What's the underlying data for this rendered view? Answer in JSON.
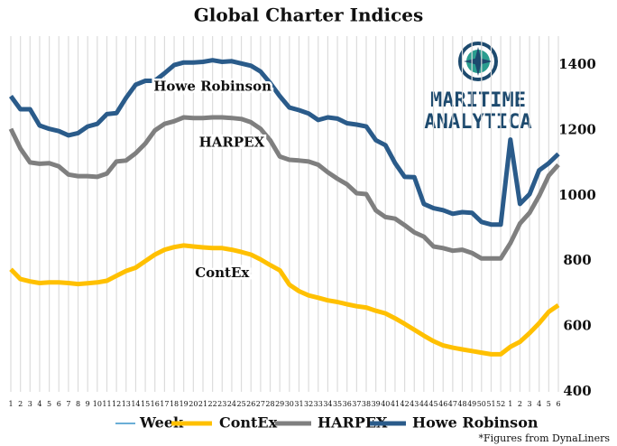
{
  "chart_data": {
    "type": "line",
    "title": "Global Charter Indices",
    "x_label": "Week",
    "x_label_color": "#6aaed6",
    "categories": [
      "1",
      "2",
      "3",
      "4",
      "5",
      "6",
      "7",
      "8",
      "9",
      "10",
      "11",
      "12",
      "13",
      "14",
      "15",
      "16",
      "17",
      "18",
      "19",
      "20",
      "21",
      "22",
      "23",
      "24",
      "25",
      "26",
      "27",
      "28",
      "29",
      "30",
      "31",
      "32",
      "33",
      "34",
      "35",
      "36",
      "37",
      "38",
      "39",
      "40",
      "41",
      "42",
      "43",
      "44",
      "45",
      "46",
      "47",
      "48",
      "49",
      "50",
      "51",
      "52",
      "1",
      "2",
      "3",
      "4",
      "5",
      "6"
    ],
    "series": [
      {
        "name": "ContEx",
        "color": "#ffc000",
        "values": [
          775,
          745,
          738,
          733,
          735,
          735,
          733,
          730,
          732,
          735,
          740,
          755,
          770,
          780,
          800,
          820,
          835,
          843,
          848,
          845,
          842,
          840,
          840,
          835,
          828,
          820,
          805,
          788,
          772,
          728,
          708,
          695,
          688,
          680,
          675,
          668,
          662,
          658,
          648,
          640,
          625,
          608,
          590,
          572,
          555,
          542,
          535,
          530,
          525,
          520,
          515,
          515,
          538,
          553,
          580,
          610,
          645,
          665
        ]
      },
      {
        "name": "HARPEX",
        "color": "#7f7f7f",
        "values": [
          1205,
          1145,
          1102,
          1098,
          1100,
          1090,
          1065,
          1060,
          1060,
          1058,
          1068,
          1105,
          1108,
          1130,
          1160,
          1200,
          1220,
          1228,
          1240,
          1238,
          1238,
          1240,
          1240,
          1238,
          1235,
          1225,
          1205,
          1170,
          1120,
          1110,
          1108,
          1105,
          1095,
          1072,
          1052,
          1035,
          1008,
          1005,
          955,
          935,
          930,
          910,
          888,
          875,
          845,
          840,
          832,
          835,
          825,
          808,
          808,
          808,
          855,
          915,
          948,
          1000,
          1062,
          1095
        ]
      },
      {
        "name": "Howe Robinson",
        "color": "#2a5b8a",
        "values": [
          1305,
          1265,
          1265,
          1215,
          1205,
          1198,
          1185,
          1192,
          1212,
          1220,
          1250,
          1253,
          1300,
          1340,
          1352,
          1352,
          1375,
          1400,
          1408,
          1408,
          1410,
          1415,
          1410,
          1412,
          1405,
          1398,
          1380,
          1345,
          1305,
          1270,
          1262,
          1252,
          1232,
          1240,
          1236,
          1222,
          1218,
          1212,
          1170,
          1155,
          1100,
          1058,
          1057,
          975,
          962,
          956,
          945,
          950,
          948,
          920,
          912,
          912,
          1172,
          975,
          1005,
          1078,
          1100,
          1128
        ]
      }
    ],
    "ylim": [
      400,
      1450
    ],
    "yticks": [
      400,
      600,
      800,
      1000,
      1200,
      1400
    ],
    "y_axis_side": "right",
    "vertical_grid": true,
    "annotations": [
      {
        "text": "Howe Robinson",
        "series": 2,
        "at": 21
      },
      {
        "text": "HARPEX",
        "series": 1,
        "at": 23
      },
      {
        "text": "ContEx",
        "series": 0,
        "at": 22
      }
    ],
    "logo": {
      "line1": "MARITIME",
      "line2": "ANALYTICA"
    },
    "footnote": "*Figures from DynaLiners"
  }
}
